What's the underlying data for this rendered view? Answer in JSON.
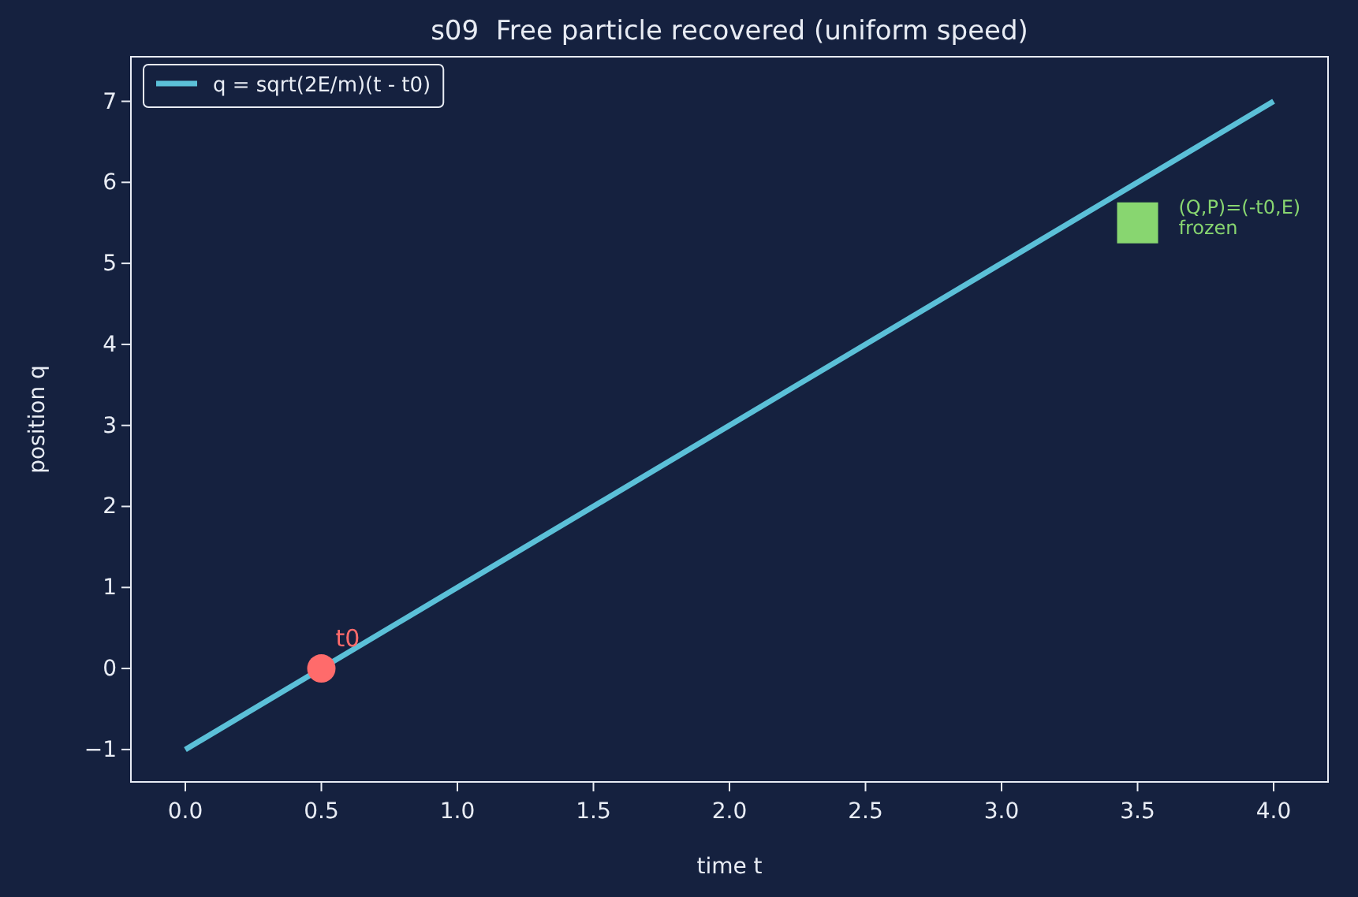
{
  "chart_data": {
    "type": "line",
    "title": "s09  Free particle recovered (uniform speed)",
    "xlabel": "time t",
    "ylabel": "position q",
    "series": [
      {
        "name": "q = sqrt(2E/m)(t - t0)",
        "color": "#5bc0d8",
        "x": [
          0,
          4
        ],
        "values": [
          -1,
          7
        ],
        "marker": "none"
      },
      {
        "type": "scatter",
        "color": "#ff6b6b",
        "x": [
          0.5
        ],
        "values": [
          0
        ],
        "marker": "circle"
      },
      {
        "type": "scatter",
        "color": "#88d670",
        "x": [
          3.5
        ],
        "values": [
          5.5
        ],
        "marker": "square"
      }
    ],
    "annotations": [
      {
        "text": "t0",
        "x": 0.5,
        "y": 0
      },
      {
        "text": "(Q,P)=(-t0,E)\nfrozen",
        "x": 3.5,
        "y": 5.5
      }
    ],
    "xlim": [
      -0.2,
      4.2
    ],
    "ylim": [
      -1.4,
      7.55
    ],
    "xticks": [
      {
        "value": 0,
        "label": "0.0"
      },
      {
        "value": 0.5,
        "label": "0.5"
      },
      {
        "value": 1,
        "label": "1.0"
      },
      {
        "value": 1.5,
        "label": "1.5"
      },
      {
        "value": 2,
        "label": "2.0"
      },
      {
        "value": 2.5,
        "label": "2.5"
      },
      {
        "value": 3,
        "label": "3.0"
      },
      {
        "value": 3.5,
        "label": "3.5"
      },
      {
        "value": 4,
        "label": "4.0"
      }
    ],
    "yticks": [
      {
        "value": -1,
        "label": "−1"
      },
      0,
      1,
      2,
      3,
      4,
      5,
      6,
      7
    ],
    "legend": "top left",
    "grid": false
  }
}
